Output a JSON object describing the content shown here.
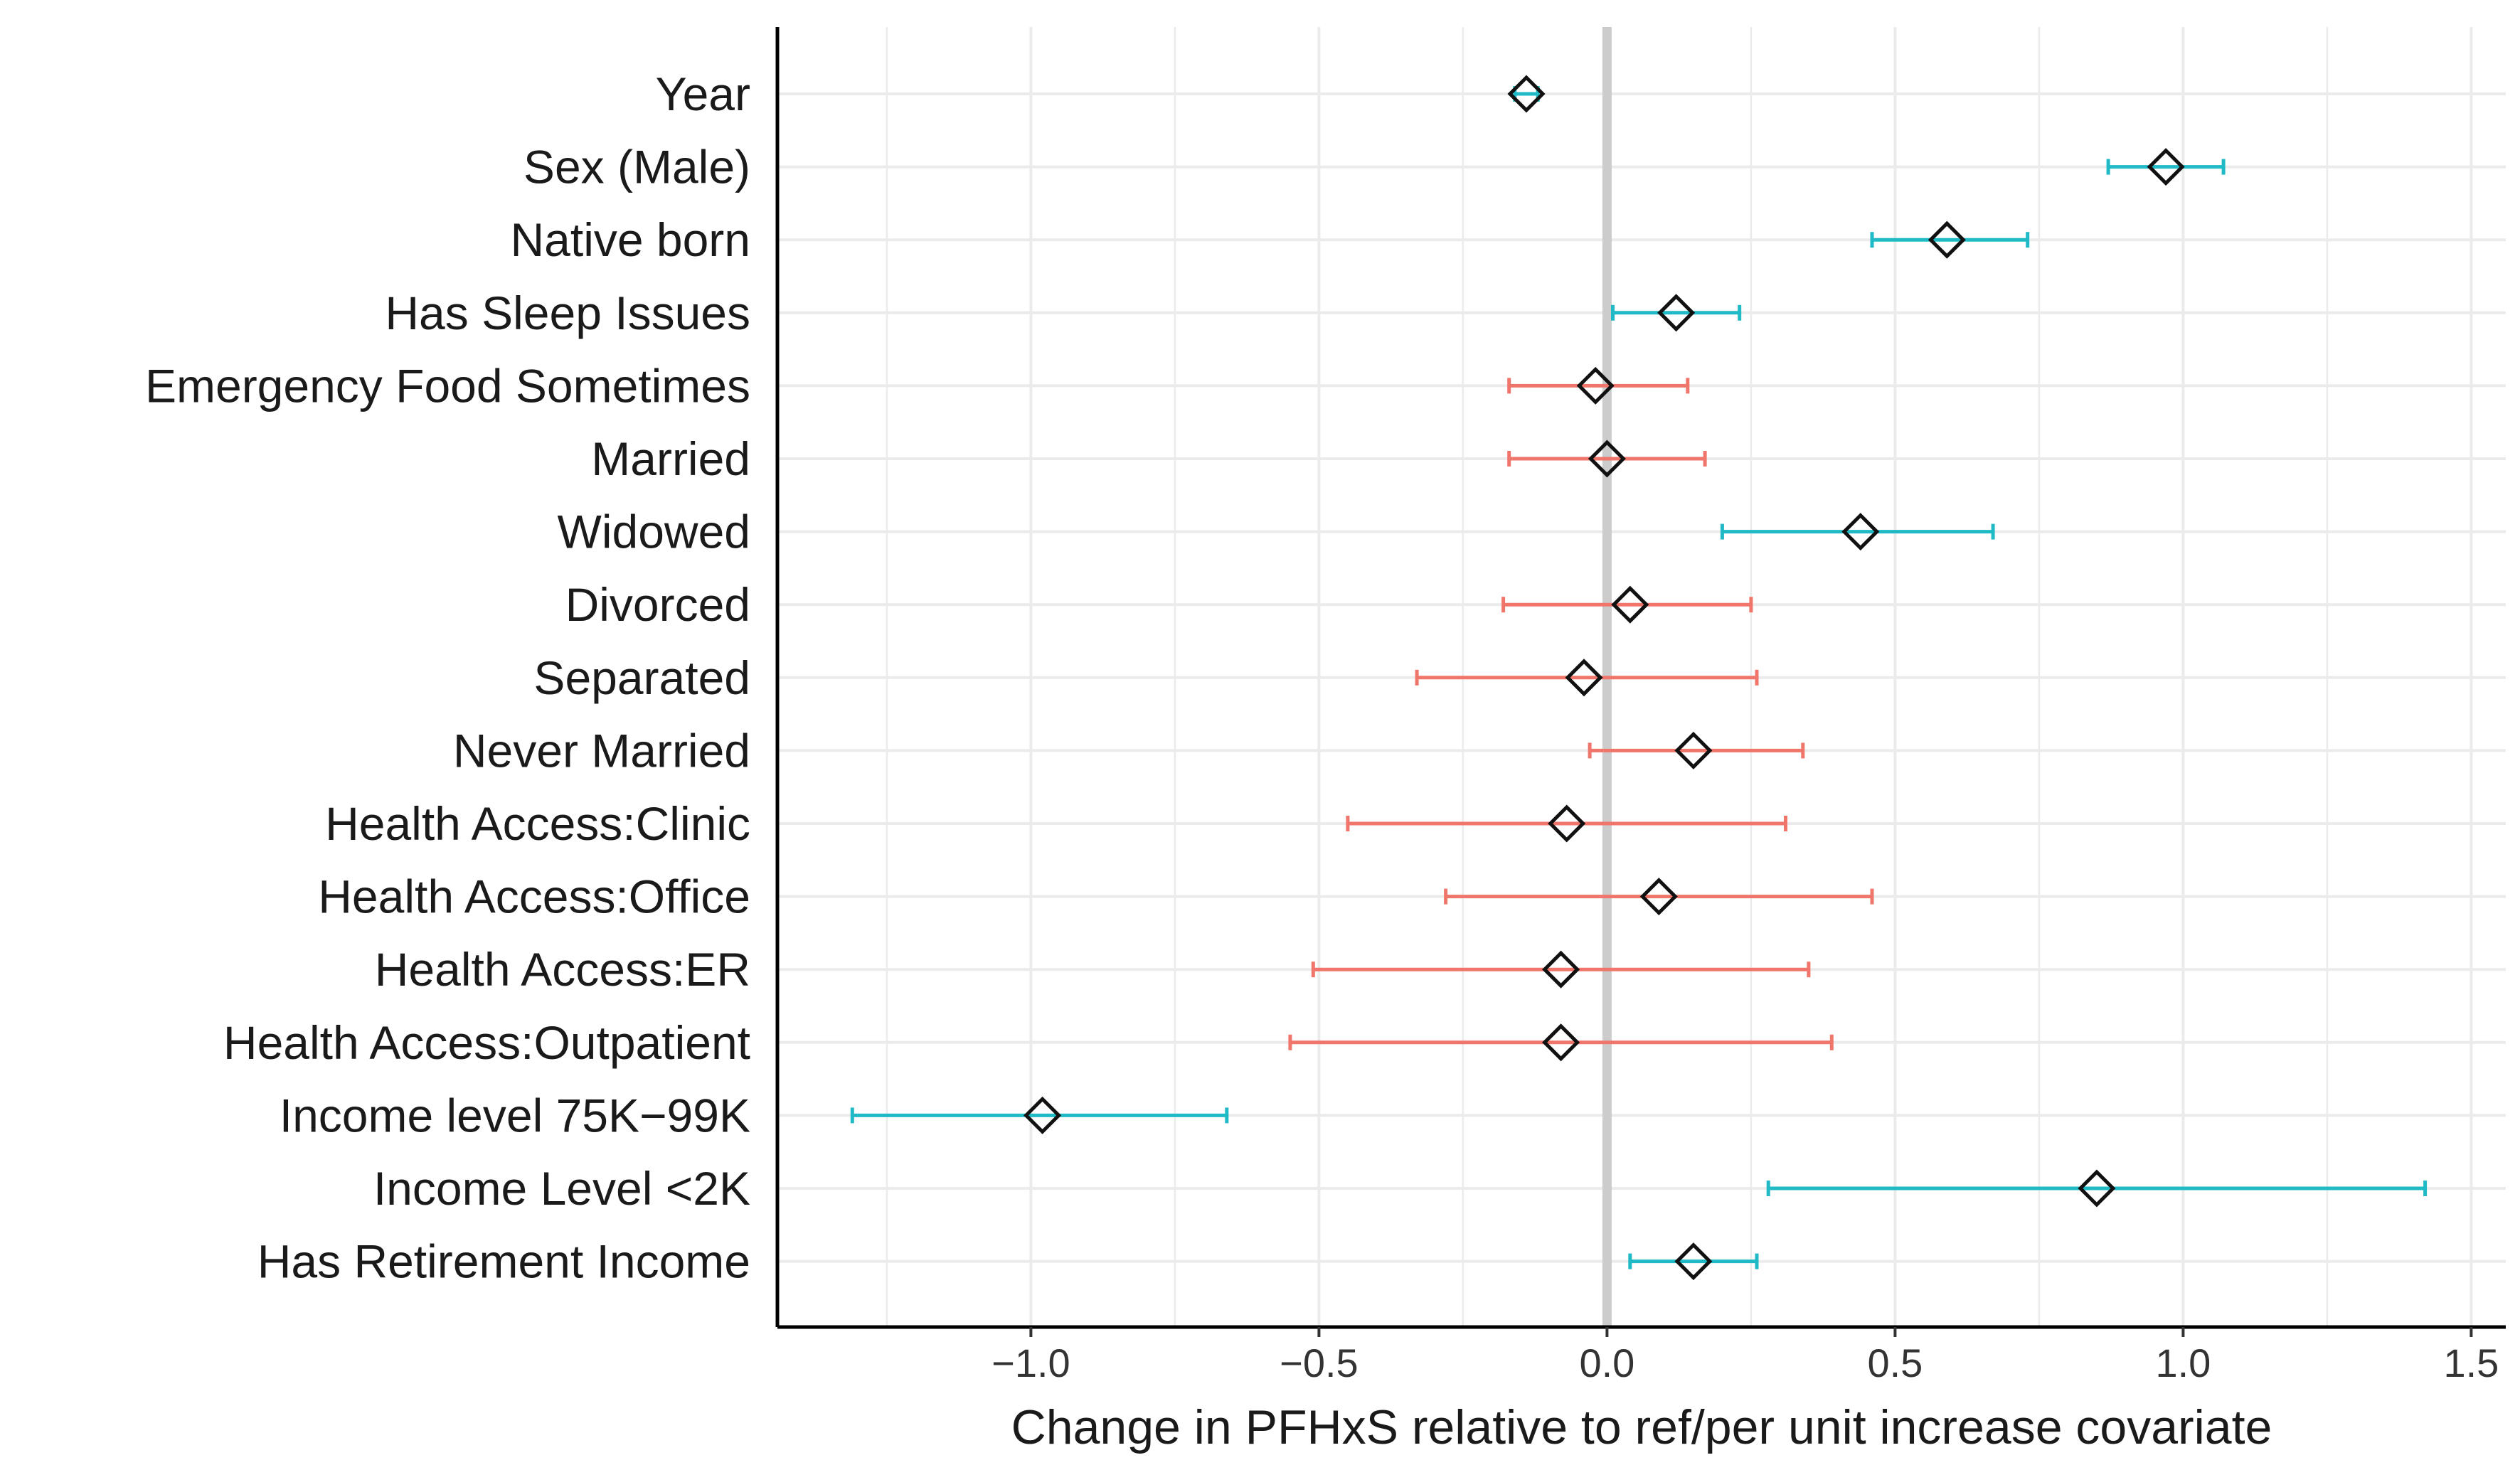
{
  "chart_data": {
    "type": "forest",
    "title": "",
    "xlabel": "Change in PFHxS relative to ref/per unit increase covariate",
    "ylabel": "",
    "xlim": [
      -1.44,
      1.56
    ],
    "xticks": [
      -1.0,
      -0.5,
      0.0,
      0.5,
      1.0,
      1.5
    ],
    "xtick_labels": [
      "−1.0",
      "−0.5",
      "0.0",
      "0.5",
      "1.0",
      "1.5"
    ],
    "reference_line": 0.0,
    "grid": true,
    "legend": "none",
    "colors": {
      "significant": "#1fbac6",
      "not_significant": "#f0766c",
      "reference": "#cccccc",
      "axis": "#000000",
      "grid": "#ebebeb"
    },
    "rows": [
      {
        "label": "Year",
        "estimate": -0.14,
        "low": -0.16,
        "high": -0.12,
        "significant": true
      },
      {
        "label": "Sex (Male)",
        "estimate": 0.97,
        "low": 0.87,
        "high": 1.07,
        "significant": true
      },
      {
        "label": "Native born",
        "estimate": 0.59,
        "low": 0.46,
        "high": 0.73,
        "significant": true
      },
      {
        "label": "Has Sleep Issues",
        "estimate": 0.12,
        "low": 0.01,
        "high": 0.23,
        "significant": true
      },
      {
        "label": "Emergency Food Sometimes",
        "estimate": -0.02,
        "low": -0.17,
        "high": 0.14,
        "significant": false
      },
      {
        "label": "Married",
        "estimate": 0.0,
        "low": -0.17,
        "high": 0.17,
        "significant": false
      },
      {
        "label": "Widowed",
        "estimate": 0.44,
        "low": 0.2,
        "high": 0.67,
        "significant": true
      },
      {
        "label": "Divorced",
        "estimate": 0.04,
        "low": -0.18,
        "high": 0.25,
        "significant": false
      },
      {
        "label": "Separated",
        "estimate": -0.04,
        "low": -0.33,
        "high": 0.26,
        "significant": false
      },
      {
        "label": "Never Married",
        "estimate": 0.15,
        "low": -0.03,
        "high": 0.34,
        "significant": false
      },
      {
        "label": "Health Access:Clinic",
        "estimate": -0.07,
        "low": -0.45,
        "high": 0.31,
        "significant": false
      },
      {
        "label": "Health Access:Office",
        "estimate": 0.09,
        "low": -0.28,
        "high": 0.46,
        "significant": false
      },
      {
        "label": "Health Access:ER",
        "estimate": -0.08,
        "low": -0.51,
        "high": 0.35,
        "significant": false
      },
      {
        "label": "Health Access:Outpatient",
        "estimate": -0.08,
        "low": -0.55,
        "high": 0.39,
        "significant": false
      },
      {
        "label": "Income level 75K−99K",
        "estimate": -0.98,
        "low": -1.31,
        "high": -0.66,
        "significant": true
      },
      {
        "label": "Income Level <2K",
        "estimate": 0.85,
        "low": 0.28,
        "high": 1.42,
        "significant": true
      },
      {
        "label": "Has Retirement Income",
        "estimate": 0.15,
        "low": 0.04,
        "high": 0.26,
        "significant": true
      }
    ]
  }
}
